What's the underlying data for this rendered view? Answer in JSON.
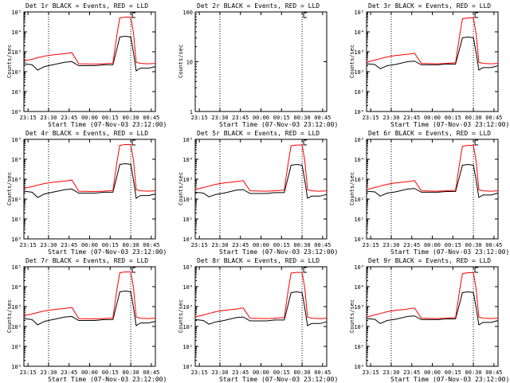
{
  "colors": {
    "events": "#000000",
    "lld": "#ff0000",
    "axis": "#000000",
    "background": "#ffffff"
  },
  "chart_data": [
    {
      "type": "line",
      "title": "Det 1r BLACK = Events, RED = LLD",
      "xlabel": "Start Time (07-Nov-03 23:12:00)",
      "ylabel": "Counts/sec",
      "x_ticks": [
        "23:15",
        "23:30",
        "23:45",
        "00:00",
        "00:15",
        "00:30",
        "00:45"
      ],
      "y_scale": "log",
      "ylim": [
        1,
        100000
      ],
      "y_ticks": [
        "10⁰",
        "10¹",
        "10²",
        "10³",
        "10⁴",
        "10⁵"
      ],
      "markers": [
        "23:30",
        "00:30"
      ],
      "series": [
        {
          "name": "Events",
          "x": [
            "23:12",
            "23:18",
            "23:22",
            "23:27",
            "23:33",
            "23:42",
            "23:47",
            "23:52",
            "00:04",
            "00:10",
            "00:17",
            "00:20",
            "00:22",
            "00:26",
            "00:30",
            "00:32",
            "00:34",
            "00:37",
            "00:43",
            "00:48"
          ],
          "y": [
            250,
            220,
            120,
            180,
            220,
            300,
            320,
            200,
            200,
            220,
            220,
            1500,
            5500,
            6000,
            5500,
            900,
            110,
            150,
            150,
            180
          ]
        },
        {
          "name": "LLD",
          "x": [
            "23:12",
            "23:18",
            "23:22",
            "23:27",
            "23:33",
            "23:42",
            "23:47",
            "23:52",
            "00:04",
            "00:10",
            "00:17",
            "00:20",
            "00:22",
            "00:26",
            "00:30",
            "00:32",
            "00:34",
            "00:37",
            "00:43",
            "00:48"
          ],
          "y": [
            350,
            420,
            500,
            600,
            700,
            800,
            900,
            250,
            240,
            250,
            270,
            8000,
            50000,
            55000,
            55000,
            9000,
            300,
            260,
            250,
            260
          ]
        }
      ]
    },
    {
      "type": "line",
      "title": "Det 2r BLACK = Events, RED = LLD",
      "xlabel": "Start Time (07-Nov-03 23:12:00)",
      "ylabel": "Counts/sec",
      "x_ticks": [
        "23:15",
        "23:30",
        "23:45",
        "00:00",
        "00:15",
        "00:30",
        "00:45"
      ],
      "y_scale": "log",
      "ylim": [
        1,
        100
      ],
      "y_ticks": [
        "1",
        "10",
        "100"
      ],
      "markers": [
        "23:30",
        "00:30"
      ],
      "series": []
    },
    {
      "type": "line",
      "title": "Det 3r BLACK = Events, RED = LLD",
      "xlabel": "Start Time (07-Nov-03 23:12:00)",
      "ylabel": "Counts/sec",
      "x_ticks": [
        "23:15",
        "23:30",
        "23:45",
        "00:00",
        "00:15",
        "00:30",
        "00:45"
      ],
      "y_scale": "log",
      "ylim": [
        1,
        100000
      ],
      "y_ticks": [
        "10⁰",
        "10¹",
        "10²",
        "10³",
        "10⁴",
        "10⁵"
      ],
      "markers": [
        "23:30",
        "00:30"
      ],
      "series": [
        {
          "name": "Events",
          "x": [
            "23:12",
            "23:18",
            "23:22",
            "23:27",
            "23:33",
            "23:42",
            "23:47",
            "23:52",
            "00:04",
            "00:10",
            "00:17",
            "00:20",
            "00:22",
            "00:26",
            "00:30",
            "00:32",
            "00:34",
            "00:37",
            "00:43",
            "00:48"
          ],
          "y": [
            250,
            230,
            140,
            200,
            230,
            320,
            340,
            220,
            220,
            240,
            240,
            1500,
            5000,
            5500,
            5000,
            900,
            120,
            160,
            160,
            200
          ]
        },
        {
          "name": "LLD",
          "x": [
            "23:12",
            "23:18",
            "23:22",
            "23:27",
            "23:33",
            "23:42",
            "23:47",
            "23:52",
            "00:04",
            "00:10",
            "00:17",
            "00:20",
            "00:22",
            "00:26",
            "00:30",
            "00:32",
            "00:34",
            "00:37",
            "00:43",
            "00:48"
          ],
          "y": [
            300,
            380,
            450,
            550,
            650,
            750,
            850,
            260,
            250,
            260,
            280,
            7000,
            45000,
            50000,
            50000,
            8000,
            300,
            260,
            250,
            260
          ]
        }
      ]
    },
    {
      "type": "line",
      "title": "Det 4r BLACK = Events, RED = LLD",
      "xlabel": "Start Time (07-Nov-03 23:12:00)",
      "ylabel": "Counts/sec",
      "x_ticks": [
        "23:15",
        "23:30",
        "23:45",
        "00:00",
        "00:15",
        "00:30",
        "00:45"
      ],
      "y_scale": "log",
      "ylim": [
        1,
        100000
      ],
      "y_ticks": [
        "10⁰",
        "10¹",
        "10²",
        "10³",
        "10⁴",
        "10⁵"
      ],
      "markers": [
        "23:30",
        "00:30"
      ],
      "series": [
        {
          "name": "Events",
          "x": [
            "23:12",
            "23:18",
            "23:22",
            "23:27",
            "23:33",
            "23:42",
            "23:47",
            "23:52",
            "00:04",
            "00:10",
            "00:17",
            "00:20",
            "00:22",
            "00:26",
            "00:30",
            "00:32",
            "00:34",
            "00:37",
            "00:43",
            "00:48"
          ],
          "y": [
            250,
            220,
            120,
            180,
            220,
            300,
            320,
            200,
            200,
            220,
            220,
            1500,
            5500,
            6000,
            5500,
            900,
            110,
            150,
            150,
            180
          ]
        },
        {
          "name": "LLD",
          "x": [
            "23:12",
            "23:18",
            "23:22",
            "23:27",
            "23:33",
            "23:42",
            "23:47",
            "23:52",
            "00:04",
            "00:10",
            "00:17",
            "00:20",
            "00:22",
            "00:26",
            "00:30",
            "00:32",
            "00:34",
            "00:37",
            "00:43",
            "00:48"
          ],
          "y": [
            350,
            420,
            500,
            600,
            700,
            800,
            900,
            250,
            240,
            250,
            270,
            8000,
            50000,
            55000,
            55000,
            9000,
            300,
            260,
            250,
            260
          ]
        }
      ]
    },
    {
      "type": "line",
      "title": "Det 5r BLACK = Events, RED = LLD",
      "xlabel": "Start Time (07-Nov-03 23:12:00)",
      "ylabel": "Counts/sec",
      "x_ticks": [
        "23:15",
        "23:30",
        "23:45",
        "00:00",
        "00:15",
        "00:30",
        "00:45"
      ],
      "y_scale": "log",
      "ylim": [
        1,
        100000
      ],
      "y_ticks": [
        "10⁰",
        "10¹",
        "10²",
        "10³",
        "10⁴",
        "10⁵"
      ],
      "markers": [
        "23:30",
        "00:30"
      ],
      "series": [
        {
          "name": "Events",
          "x": [
            "23:12",
            "23:18",
            "23:22",
            "23:27",
            "23:33",
            "23:42",
            "23:47",
            "23:52",
            "00:04",
            "00:10",
            "00:17",
            "00:20",
            "00:22",
            "00:26",
            "00:30",
            "00:32",
            "00:34",
            "00:37",
            "00:43",
            "00:48"
          ],
          "y": [
            220,
            200,
            130,
            170,
            200,
            280,
            300,
            190,
            190,
            210,
            210,
            1400,
            5000,
            5500,
            5000,
            850,
            110,
            140,
            140,
            170
          ]
        },
        {
          "name": "LLD",
          "x": [
            "23:12",
            "23:18",
            "23:22",
            "23:27",
            "23:33",
            "23:42",
            "23:47",
            "23:52",
            "00:04",
            "00:10",
            "00:17",
            "00:20",
            "00:22",
            "00:26",
            "00:30",
            "00:32",
            "00:34",
            "00:37",
            "00:43",
            "00:48"
          ],
          "y": [
            300,
            380,
            450,
            550,
            650,
            750,
            850,
            260,
            250,
            260,
            280,
            7500,
            48000,
            52000,
            52000,
            8500,
            300,
            260,
            250,
            260
          ]
        }
      ]
    },
    {
      "type": "line",
      "title": "Det 6r BLACK = Events, RED = LLD",
      "xlabel": "Start Time (07-Nov-03 23:12:00)",
      "ylabel": "Counts/sec",
      "x_ticks": [
        "23:15",
        "23:30",
        "23:45",
        "00:00",
        "00:15",
        "00:30",
        "00:45"
      ],
      "y_scale": "log",
      "ylim": [
        1,
        100000
      ],
      "y_ticks": [
        "10⁰",
        "10¹",
        "10²",
        "10³",
        "10⁴",
        "10⁵"
      ],
      "markers": [
        "23:30",
        "00:30"
      ],
      "series": [
        {
          "name": "Events",
          "x": [
            "23:12",
            "23:18",
            "23:22",
            "23:27",
            "23:33",
            "23:42",
            "23:47",
            "23:52",
            "00:04",
            "00:10",
            "00:17",
            "00:20",
            "00:22",
            "00:26",
            "00:30",
            "00:32",
            "00:34",
            "00:37",
            "00:43",
            "00:48"
          ],
          "y": [
            250,
            230,
            140,
            200,
            230,
            320,
            340,
            220,
            220,
            240,
            240,
            1500,
            5000,
            5500,
            5000,
            900,
            120,
            160,
            160,
            200
          ]
        },
        {
          "name": "LLD",
          "x": [
            "23:12",
            "23:18",
            "23:22",
            "23:27",
            "23:33",
            "23:42",
            "23:47",
            "23:52",
            "00:04",
            "00:10",
            "00:17",
            "00:20",
            "00:22",
            "00:26",
            "00:30",
            "00:32",
            "00:34",
            "00:37",
            "00:43",
            "00:48"
          ],
          "y": [
            300,
            380,
            450,
            550,
            650,
            750,
            850,
            260,
            250,
            260,
            280,
            7000,
            45000,
            50000,
            50000,
            8000,
            300,
            260,
            250,
            260
          ]
        }
      ]
    },
    {
      "type": "line",
      "title": "Det 7r BLACK = Events, RED = LLD",
      "xlabel": "Start Time (07-Nov-03 23:12:00)",
      "ylabel": "Counts/sec",
      "x_ticks": [
        "23:15",
        "23:30",
        "23:45",
        "00:00",
        "00:15",
        "00:30",
        "00:45"
      ],
      "y_scale": "log",
      "ylim": [
        1,
        100000
      ],
      "y_ticks": [
        "10⁰",
        "10¹",
        "10²",
        "10³",
        "10⁴",
        "10⁵"
      ],
      "markers": [
        "23:30",
        "00:30"
      ],
      "series": [
        {
          "name": "Events",
          "x": [
            "23:12",
            "23:18",
            "23:22",
            "23:27",
            "23:33",
            "23:42",
            "23:47",
            "23:52",
            "00:04",
            "00:10",
            "00:17",
            "00:20",
            "00:22",
            "00:26",
            "00:30",
            "00:32",
            "00:34",
            "00:37",
            "00:43",
            "00:48"
          ],
          "y": [
            250,
            220,
            120,
            180,
            220,
            300,
            320,
            200,
            200,
            220,
            220,
            1500,
            5500,
            6000,
            5500,
            900,
            110,
            150,
            150,
            180
          ]
        },
        {
          "name": "LLD",
          "x": [
            "23:12",
            "23:18",
            "23:22",
            "23:27",
            "23:33",
            "23:42",
            "23:47",
            "23:52",
            "00:04",
            "00:10",
            "00:17",
            "00:20",
            "00:22",
            "00:26",
            "00:30",
            "00:32",
            "00:34",
            "00:37",
            "00:43",
            "00:48"
          ],
          "y": [
            350,
            420,
            500,
            600,
            700,
            800,
            900,
            250,
            240,
            250,
            270,
            8000,
            50000,
            55000,
            55000,
            9000,
            300,
            260,
            250,
            260
          ]
        }
      ]
    },
    {
      "type": "line",
      "title": "Det 8r BLACK = Events, RED = LLD",
      "xlabel": "Start Time (07-Nov-03 23:12:00)",
      "ylabel": "Counts/sec",
      "x_ticks": [
        "23:15",
        "23:30",
        "23:45",
        "00:00",
        "00:15",
        "00:30",
        "00:45"
      ],
      "y_scale": "log",
      "ylim": [
        1,
        100000
      ],
      "y_ticks": [
        "10⁰",
        "10¹",
        "10²",
        "10³",
        "10⁴",
        "10⁵"
      ],
      "markers": [
        "23:30",
        "00:30"
      ],
      "series": [
        {
          "name": "Events",
          "x": [
            "23:12",
            "23:18",
            "23:22",
            "23:27",
            "23:33",
            "23:42",
            "23:47",
            "23:52",
            "00:04",
            "00:10",
            "00:17",
            "00:20",
            "00:22",
            "00:26",
            "00:30",
            "00:32",
            "00:34",
            "00:37",
            "00:43",
            "00:48"
          ],
          "y": [
            220,
            200,
            130,
            170,
            200,
            280,
            300,
            190,
            190,
            210,
            210,
            1400,
            5000,
            5500,
            5000,
            850,
            110,
            140,
            140,
            170
          ]
        },
        {
          "name": "LLD",
          "x": [
            "23:12",
            "23:18",
            "23:22",
            "23:27",
            "23:33",
            "23:42",
            "23:47",
            "23:52",
            "00:04",
            "00:10",
            "00:17",
            "00:20",
            "00:22",
            "00:26",
            "00:30",
            "00:32",
            "00:34",
            "00:37",
            "00:43",
            "00:48"
          ],
          "y": [
            300,
            380,
            450,
            550,
            650,
            750,
            850,
            260,
            250,
            260,
            280,
            7500,
            48000,
            52000,
            52000,
            8500,
            300,
            260,
            250,
            260
          ]
        }
      ]
    },
    {
      "type": "line",
      "title": "Det 9r BLACK = Events, RED = LLD",
      "xlabel": "Start Time (07-Nov-03 23:12:00)",
      "ylabel": "Counts/sec",
      "x_ticks": [
        "23:15",
        "23:30",
        "23:45",
        "00:00",
        "00:15",
        "00:30",
        "00:45"
      ],
      "y_scale": "log",
      "ylim": [
        1,
        100000
      ],
      "y_ticks": [
        "10⁰",
        "10¹",
        "10²",
        "10³",
        "10⁴",
        "10⁵"
      ],
      "markers": [
        "23:30",
        "00:30"
      ],
      "series": [
        {
          "name": "Events",
          "x": [
            "23:12",
            "23:18",
            "23:22",
            "23:27",
            "23:33",
            "23:42",
            "23:47",
            "23:52",
            "00:04",
            "00:10",
            "00:17",
            "00:20",
            "00:22",
            "00:26",
            "00:30",
            "00:32",
            "00:34",
            "00:37",
            "00:43",
            "00:48"
          ],
          "y": [
            250,
            230,
            140,
            200,
            230,
            320,
            340,
            220,
            220,
            240,
            240,
            1500,
            5000,
            5500,
            5000,
            900,
            120,
            160,
            160,
            200
          ]
        },
        {
          "name": "LLD",
          "x": [
            "23:12",
            "23:18",
            "23:22",
            "23:27",
            "23:33",
            "23:42",
            "23:47",
            "23:52",
            "00:04",
            "00:10",
            "00:17",
            "00:20",
            "00:22",
            "00:26",
            "00:30",
            "00:32",
            "00:34",
            "00:37",
            "00:43",
            "00:48"
          ],
          "y": [
            300,
            380,
            450,
            550,
            650,
            750,
            850,
            260,
            250,
            260,
            280,
            7000,
            45000,
            50000,
            50000,
            8000,
            300,
            260,
            250,
            260
          ]
        }
      ]
    }
  ]
}
